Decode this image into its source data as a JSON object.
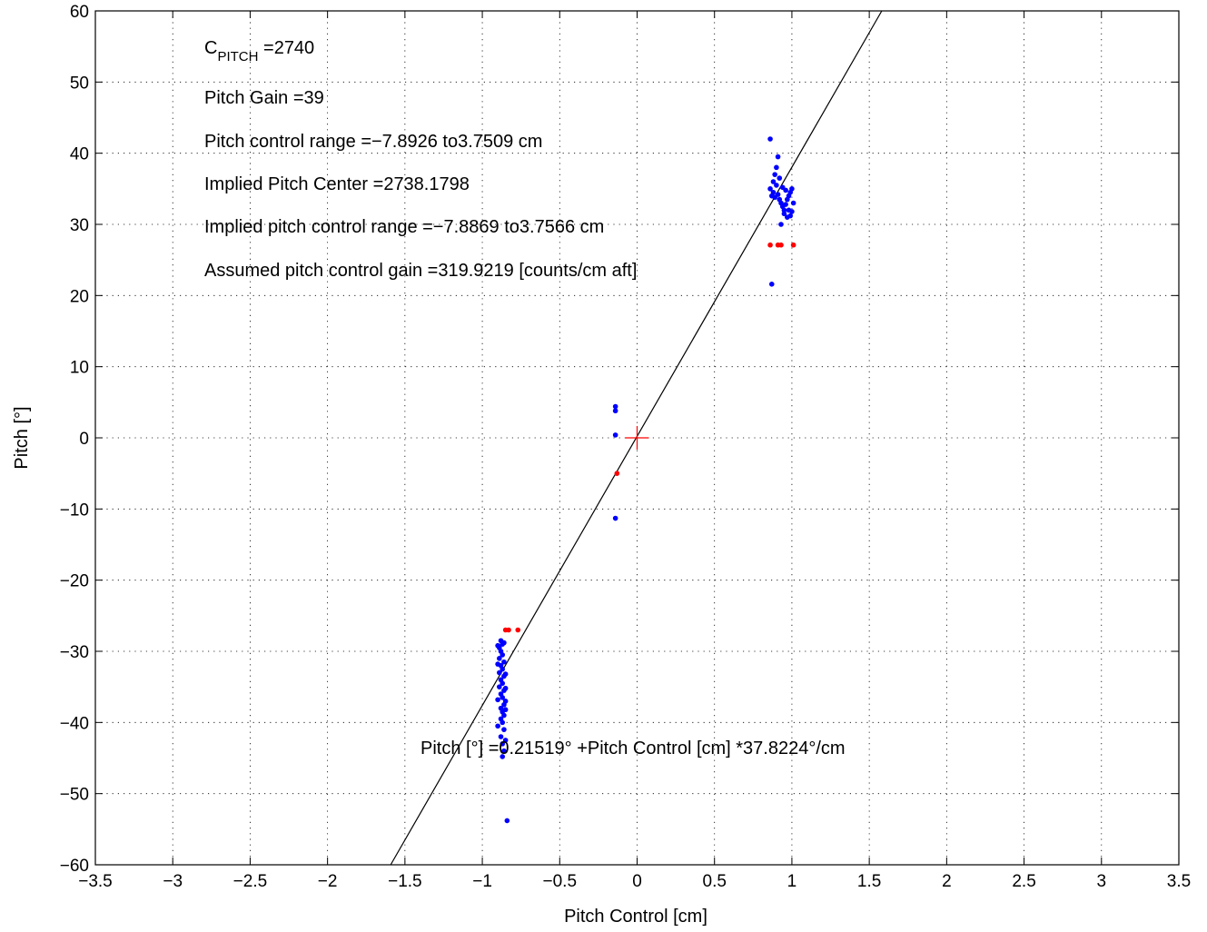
{
  "chart_data": {
    "type": "scatter",
    "xlabel": "Pitch Control [cm]",
    "ylabel": "Pitch [°]",
    "xlim": [
      -3.5,
      3.5
    ],
    "ylim": [
      -60,
      60
    ],
    "x_ticks": [
      -3.5,
      -3,
      -2.5,
      -2,
      -1.5,
      -1,
      -0.5,
      0,
      0.5,
      1,
      1.5,
      2,
      2.5,
      3,
      3.5
    ],
    "y_ticks": [
      -60,
      -50,
      -40,
      -30,
      -20,
      -10,
      0,
      10,
      20,
      30,
      40,
      50,
      60
    ],
    "x_tick_labels": [
      "−3.5",
      "−3",
      "−2.5",
      "−2",
      "−1.5",
      "−1",
      "−0.5",
      "0",
      "0.5",
      "1",
      "1.5",
      "2",
      "2.5",
      "3",
      "3.5"
    ],
    "y_tick_labels": [
      "−60",
      "−50",
      "−40",
      "−30",
      "−20",
      "−10",
      "0",
      "10",
      "20",
      "30",
      "40",
      "50",
      "60"
    ],
    "grid": true,
    "colors": {
      "blue_points": "#0000ff",
      "red_points": "#ff0000",
      "fit_line": "#000000",
      "center_marker": "#ff0000"
    },
    "annotations": {
      "c_pitch_main": "C",
      "c_pitch_sub": "PITCH",
      "c_pitch_value": " =2740",
      "pitch_gain": "Pitch Gain =39",
      "control_range": "Pitch control range =−7.8926 to3.7509 cm",
      "implied_center": "Implied Pitch Center =2738.1798",
      "implied_range": "Implied pitch control range =−7.8869 to3.7566 cm",
      "assumed_gain": "Assumed pitch control gain =319.9219 [counts/cm aft]",
      "fit_equation": "Pitch [°] =0.21519° +Pitch Control [cm] *37.8224°/cm"
    },
    "fit_line": {
      "intercept": 0.21519,
      "slope": 37.8224
    },
    "center_marker": {
      "x": 0,
      "y": 0
    },
    "blue_series": [
      [
        -0.88,
        -28.5
      ],
      [
        -0.87,
        -29.0
      ],
      [
        -0.89,
        -29.5
      ],
      [
        -0.86,
        -28.8
      ],
      [
        -0.88,
        -30.0
      ],
      [
        -0.87,
        -30.5
      ],
      [
        -0.89,
        -31.0
      ],
      [
        -0.86,
        -31.5
      ],
      [
        -0.88,
        -32.0
      ],
      [
        -0.87,
        -32.5
      ],
      [
        -0.89,
        -33.0
      ],
      [
        -0.86,
        -33.5
      ],
      [
        -0.88,
        -34.0
      ],
      [
        -0.87,
        -34.5
      ],
      [
        -0.89,
        -35.0
      ],
      [
        -0.86,
        -35.5
      ],
      [
        -0.88,
        -36.0
      ],
      [
        -0.87,
        -36.5
      ],
      [
        -0.85,
        -37.0
      ],
      [
        -0.86,
        -37.5
      ],
      [
        -0.88,
        -38.0
      ],
      [
        -0.87,
        -38.5
      ],
      [
        -0.86,
        -39.0
      ],
      [
        -0.88,
        -39.5
      ],
      [
        -0.87,
        -40.0
      ],
      [
        -0.86,
        -41.0
      ],
      [
        -0.88,
        -42.0
      ],
      [
        -0.87,
        -43.0
      ],
      [
        -0.86,
        -44.0
      ],
      [
        -0.87,
        -44.8
      ],
      [
        -0.9,
        -29.2
      ],
      [
        -0.9,
        -31.8
      ],
      [
        -0.85,
        -33.2
      ],
      [
        -0.85,
        -35.2
      ],
      [
        -0.9,
        -36.8
      ],
      [
        -0.85,
        -38.2
      ],
      [
        -0.9,
        -40.5
      ],
      [
        -0.85,
        -42.5
      ],
      [
        -0.84,
        -53.8
      ],
      [
        -0.14,
        4.4
      ],
      [
        -0.14,
        3.8
      ],
      [
        -0.14,
        0.4
      ],
      [
        -0.14,
        -11.3
      ],
      [
        0.86,
        42.0
      ],
      [
        0.86,
        35.0
      ],
      [
        0.87,
        34.0
      ],
      [
        0.88,
        36.0
      ],
      [
        0.89,
        37.0
      ],
      [
        0.9,
        38.0
      ],
      [
        0.91,
        39.5
      ],
      [
        0.88,
        34.5
      ],
      [
        0.9,
        35.5
      ],
      [
        0.92,
        36.5
      ],
      [
        0.89,
        33.8
      ],
      [
        0.91,
        34.2
      ],
      [
        0.93,
        33.0
      ],
      [
        0.94,
        32.5
      ],
      [
        0.95,
        31.5
      ],
      [
        0.96,
        32.8
      ],
      [
        0.97,
        33.5
      ],
      [
        0.98,
        32.0
      ],
      [
        0.99,
        31.2
      ],
      [
        1.0,
        31.8
      ],
      [
        1.01,
        33.0
      ],
      [
        1.0,
        35.0
      ],
      [
        0.98,
        34.0
      ],
      [
        0.96,
        34.8
      ],
      [
        0.94,
        35.2
      ],
      [
        0.92,
        33.5
      ],
      [
        0.93,
        30.0
      ],
      [
        0.95,
        32.0
      ],
      [
        0.97,
        31.0
      ],
      [
        0.99,
        34.5
      ],
      [
        0.87,
        21.6
      ]
    ],
    "red_series": [
      [
        -0.85,
        -27.0
      ],
      [
        -0.83,
        -27.0
      ],
      [
        -0.77,
        -27.0
      ],
      [
        -0.13,
        -5.0
      ],
      [
        0.86,
        27.1
      ],
      [
        0.91,
        27.1
      ],
      [
        0.93,
        27.1
      ],
      [
        1.01,
        27.1
      ]
    ]
  }
}
